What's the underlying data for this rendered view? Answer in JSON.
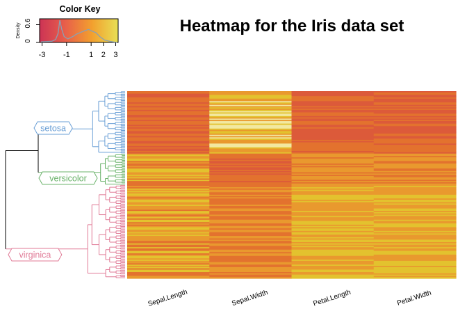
{
  "chart_data": {
    "type": "heatmap",
    "title": "Heatmap for the Iris data set",
    "columns": [
      "Sepal.Length",
      "Sepal.Width",
      "Petal.Length",
      "Petal.Width"
    ],
    "row_groups": [
      {
        "name": "setosa",
        "color": "#6a9fd6",
        "rows": 50
      },
      {
        "name": "versicolor",
        "color": "#6bb36b",
        "rows": 25
      },
      {
        "name": "virginica",
        "color": "#e07a96",
        "rows": 75
      }
    ],
    "color_key": {
      "title": "Color Key",
      "ylabel": "Density",
      "y_ticks": [
        "0",
        "0.6"
      ],
      "x_ticks": [
        "-3",
        "-1",
        "1",
        "2",
        "3"
      ],
      "x_tick_values": [
        -3,
        -1,
        1,
        2,
        3
      ],
      "range": [
        -3.2,
        3.2
      ],
      "colors": [
        "#cc3355",
        "#e8604a",
        "#f2a02e",
        "#e8e055"
      ],
      "density_curve": [
        [
          -3.1,
          0.02
        ],
        [
          -2.2,
          0.04
        ],
        [
          -1.9,
          0.1
        ],
        [
          -1.7,
          0.3
        ],
        [
          -1.55,
          0.75
        ],
        [
          -1.4,
          0.45
        ],
        [
          -1.2,
          0.2
        ],
        [
          -0.9,
          0.12
        ],
        [
          -0.5,
          0.2
        ],
        [
          -0.2,
          0.28
        ],
        [
          0.2,
          0.35
        ],
        [
          0.5,
          0.4
        ],
        [
          0.8,
          0.44
        ],
        [
          1.1,
          0.38
        ],
        [
          1.4,
          0.33
        ],
        [
          1.7,
          0.2
        ],
        [
          2.1,
          0.08
        ],
        [
          2.6,
          0.03
        ],
        [
          3.1,
          0.0
        ]
      ]
    },
    "palette": {
      "orange": "#e9992e",
      "dark_orange": "#e3722e",
      "red_orange": "#dc5a3a",
      "yellow": "#e3c22e",
      "light_yellow": "#f2e8a0",
      "dendrogram_root": "#000000"
    }
  }
}
